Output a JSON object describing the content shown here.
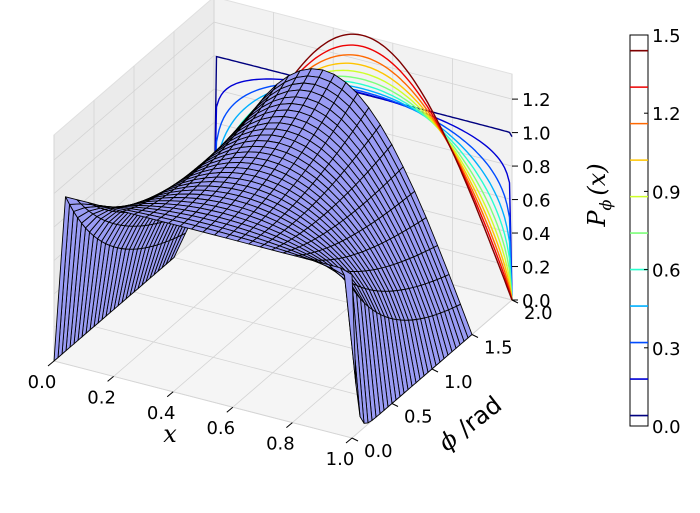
{
  "chart_data": {
    "type": "surface3d",
    "title": "",
    "axes": {
      "x": {
        "label": "x",
        "ticks": [
          "0.0",
          "0.2",
          "0.4",
          "0.6",
          "0.8",
          "1.0"
        ],
        "range": [
          0.0,
          1.0
        ]
      },
      "phi": {
        "label": "ϕ",
        "label_suffix": " /rad",
        "ticks": [
          "0.0",
          "0.5",
          "1.0",
          "1.5",
          "2.0"
        ],
        "range": [
          0.0,
          2.0
        ]
      },
      "z": {
        "label": "P",
        "label_sub": "ϕ",
        "label_arg": "(x)",
        "ticks": [
          "0.0",
          "0.2",
          "0.4",
          "0.6",
          "0.8",
          "1.0",
          "1.2"
        ],
        "range": [
          0.0,
          1.35
        ]
      }
    },
    "grid": true,
    "surface": {
      "function": "P_phi(x)",
      "x_range": [
        0.0,
        1.0
      ],
      "phi_range": [
        0.0,
        1.5
      ],
      "face_color": "#9a9cf4",
      "edge_color": "#000000"
    },
    "contour_projection": {
      "phi_levels": [
        0.0,
        0.15,
        0.3,
        0.45,
        0.6,
        0.75,
        0.9,
        1.05,
        1.2,
        1.35,
        1.5
      ],
      "colormap": "jet"
    },
    "colorbar": {
      "ticks": [
        "0.0",
        "0.3",
        "0.6",
        "0.9",
        "1.2",
        "1.5"
      ],
      "range": [
        0.0,
        1.5
      ],
      "level_colors": [
        "#00007f",
        "#0000d5",
        "#004cff",
        "#00b0ff",
        "#29ffce",
        "#7dff7a",
        "#ceff29",
        "#ffc400",
        "#ff6800",
        "#ed0000",
        "#7f0000"
      ]
    }
  }
}
